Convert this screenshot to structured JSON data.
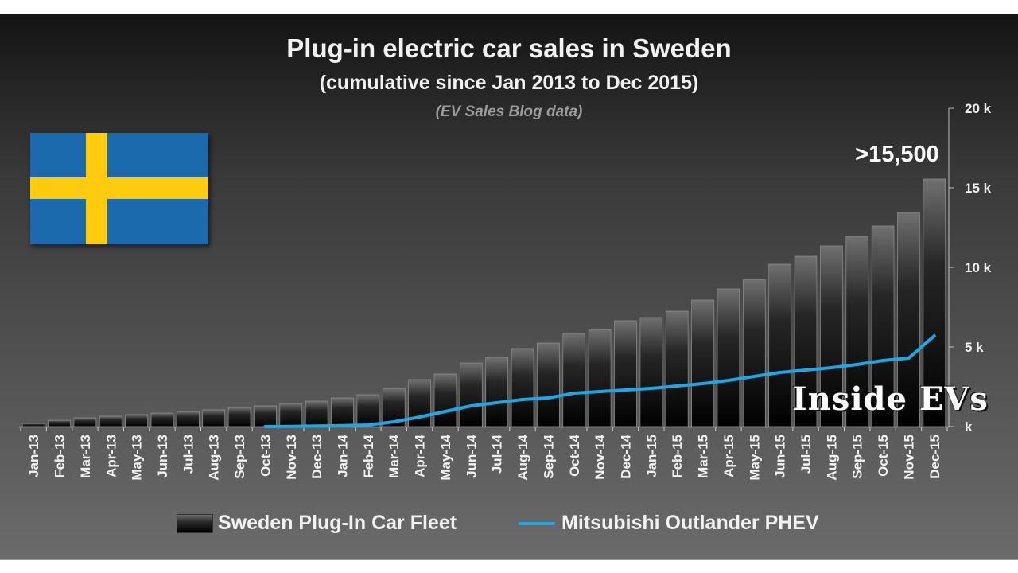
{
  "title": "Plug-in electric car sales in Sweden",
  "subtitle": "(cumulative since Jan 2013 to Dec 2015)",
  "source": "(EV Sales Blog data)",
  "watermark": "Inside EVs",
  "flag": {
    "country": "Sweden",
    "colors": {
      "blue": "#1a6aad",
      "yellow": "#fdcc0d"
    }
  },
  "colors": {
    "line": "#1aa9e6",
    "bar_top": "#707070",
    "bar_bottom": "#000000"
  },
  "chart_data": {
    "type": "bar",
    "categories": [
      "Jan-13",
      "Feb-13",
      "Mar-13",
      "Apr-13",
      "May-13",
      "Jun-13",
      "Jul-13",
      "Aug-13",
      "Sep-13",
      "Oct-13",
      "Nov-13",
      "Dec-13",
      "Jan-14",
      "Feb-14",
      "Mar-14",
      "Apr-14",
      "May-14",
      "Jun-14",
      "Jul-14",
      "Aug-14",
      "Sep-14",
      "Oct-14",
      "Nov-14",
      "Dec-14",
      "Jan-15",
      "Feb-15",
      "Mar-15",
      "Apr-15",
      "May-15",
      "Jun-15",
      "Jul-15",
      "Aug-15",
      "Sep-15",
      "Oct-15",
      "Nov-15",
      "Dec-15"
    ],
    "series": [
      {
        "name": "Sweden Plug-In Car Fleet",
        "type": "bar",
        "values": [
          200,
          400,
          550,
          650,
          750,
          850,
          950,
          1050,
          1200,
          1300,
          1450,
          1600,
          1800,
          2000,
          2400,
          2950,
          3300,
          4000,
          4350,
          4900,
          5250,
          5850,
          6100,
          6650,
          6850,
          7250,
          7950,
          8650,
          9250,
          10200,
          10700,
          11350,
          11950,
          12600,
          13450,
          15550
        ]
      },
      {
        "name": "Mitsubishi Outlander PHEV",
        "type": "line",
        "values": [
          null,
          null,
          null,
          null,
          null,
          null,
          null,
          null,
          null,
          0,
          10,
          40,
          60,
          100,
          300,
          600,
          950,
          1300,
          1500,
          1700,
          1800,
          2100,
          2200,
          2300,
          2400,
          2550,
          2700,
          2900,
          3150,
          3400,
          3550,
          3700,
          3900,
          4150,
          4300,
          5700
        ]
      }
    ],
    "y_ticks": [
      "k",
      "5 k",
      "10 k",
      "15 k",
      "20 k"
    ],
    "ylim": [
      0,
      20000
    ],
    "annotation": ">15,500",
    "legend_position": "bottom",
    "grid": false
  }
}
